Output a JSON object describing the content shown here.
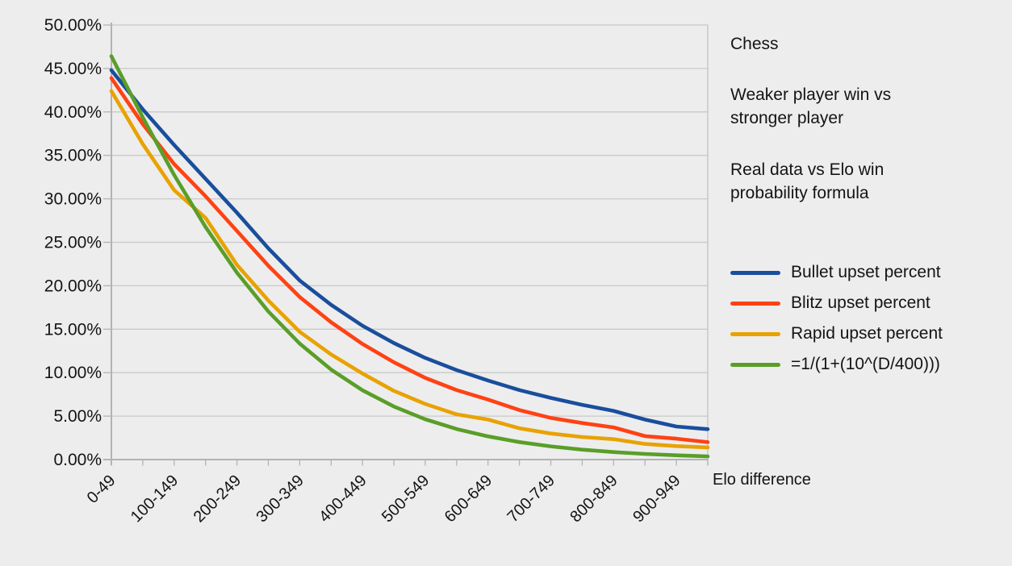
{
  "page": {
    "background": "#ededee",
    "text_color": "#141414"
  },
  "annotations": {
    "title": "Chess",
    "subtitle": "Weaker player win vs\nstronger player",
    "note": "Real data vs Elo win\nprobability formula"
  },
  "x_axis_title": "Elo difference",
  "chart_data": {
    "type": "line",
    "title": "Chess",
    "xlabel": "Elo difference",
    "ylabel": "",
    "ylim": [
      0,
      50
    ],
    "ytick_step": 5,
    "grid": "horizontal",
    "legend_position": "right",
    "y_tick_labels": [
      "0.00%",
      "5.00%",
      "10.00%",
      "15.00%",
      "20.00%",
      "25.00%",
      "30.00%",
      "35.00%",
      "40.00%",
      "45.00%",
      "50.00%"
    ],
    "categories": [
      "0-49",
      "50-99",
      "100-149",
      "150-199",
      "200-249",
      "250-299",
      "300-349",
      "350-399",
      "400-449",
      "450-499",
      "500-549",
      "550-599",
      "600-649",
      "650-699",
      "700-749",
      "750-799",
      "800-849",
      "850-899",
      "900-949",
      "950-999"
    ],
    "x_tick_labels_shown": [
      "0-49",
      "100-149",
      "200-249",
      "300-349",
      "400-449",
      "500-549",
      "600-649",
      "700-749",
      "800-849",
      "900-949"
    ],
    "series": [
      {
        "name": "Bullet upset percent",
        "color": "#1a4e9c",
        "values": [
          44.8,
          40.3,
          36.2,
          32.3,
          28.4,
          24.3,
          20.6,
          17.8,
          15.4,
          13.4,
          11.7,
          10.3,
          9.1,
          8.0,
          7.1,
          6.3,
          5.6,
          4.6,
          3.8,
          3.5
        ]
      },
      {
        "name": "Blitz upset percent",
        "color": "#ff4213",
        "values": [
          43.9,
          38.6,
          34.0,
          30.3,
          26.3,
          22.3,
          18.7,
          15.8,
          13.3,
          11.2,
          9.4,
          8.0,
          6.9,
          5.7,
          4.8,
          4.2,
          3.7,
          2.7,
          2.4,
          2.0
        ]
      },
      {
        "name": "Rapid upset percent",
        "color": "#e8a202",
        "values": [
          42.4,
          36.3,
          31.0,
          27.8,
          22.4,
          18.3,
          14.7,
          12.1,
          9.9,
          7.9,
          6.4,
          5.2,
          4.6,
          3.6,
          3.0,
          2.6,
          2.35,
          1.8,
          1.55,
          1.4
        ]
      },
      {
        "name": "=1/(1+(10^(D/400)))",
        "color": "#5a9e28",
        "values": [
          46.41,
          39.37,
          32.75,
          26.75,
          21.5,
          17.04,
          13.34,
          10.35,
          7.97,
          6.1,
          4.64,
          3.52,
          2.67,
          2.01,
          1.52,
          1.14,
          0.86,
          0.65,
          0.49,
          0.36
        ]
      }
    ],
    "colors": {
      "grid": "#c9c9c9",
      "axis": "#b3b3b3",
      "wall": "#c2c2c2"
    }
  }
}
